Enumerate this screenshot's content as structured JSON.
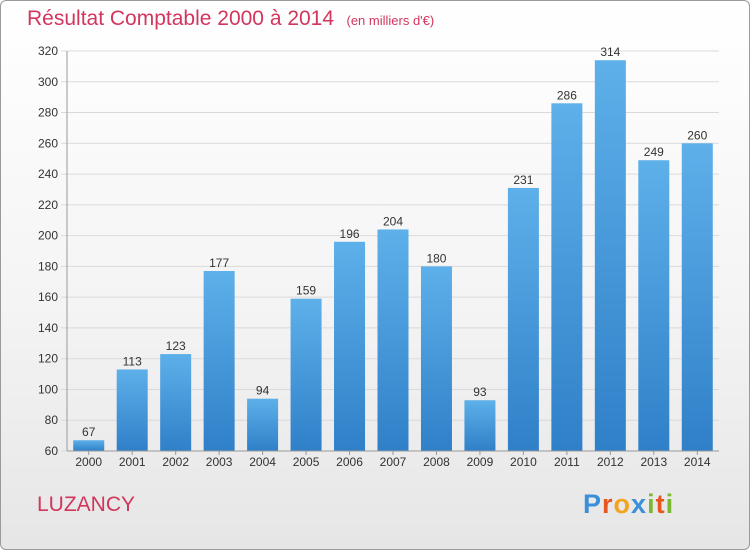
{
  "title": "Résultat Comptable 2000 à 2014",
  "subtitle": "(en milliers d'€)",
  "commune": "LUZANCY",
  "logo": {
    "text": "Proxiti",
    "letters": [
      {
        "ch": "P",
        "color": "#3b8fd8"
      },
      {
        "ch": "r",
        "color": "#e8561f"
      },
      {
        "ch": "o",
        "color": "#f2a41c"
      },
      {
        "ch": "x",
        "color": "#3b8fd8"
      },
      {
        "ch": "i",
        "color": "#7ab931"
      },
      {
        "ch": "t",
        "color": "#e8561f"
      },
      {
        "ch": "i",
        "color": "#7ab931"
      }
    ]
  },
  "colors": {
    "title": "#d2365d",
    "bar_top": "#5eb0ea",
    "bar_bottom": "#2f80c8",
    "grid": "#dadada",
    "axis_text": "#333333"
  },
  "chart_data": {
    "type": "bar",
    "categories": [
      "2000",
      "2001",
      "2002",
      "2003",
      "2004",
      "2005",
      "2006",
      "2007",
      "2008",
      "2009",
      "2010",
      "2011",
      "2012",
      "2013",
      "2014"
    ],
    "values": [
      67,
      113,
      123,
      177,
      94,
      159,
      196,
      204,
      180,
      93,
      231,
      286,
      314,
      249,
      260
    ],
    "ylim": [
      60,
      320
    ],
    "yticks": [
      60,
      80,
      100,
      120,
      140,
      160,
      180,
      200,
      220,
      240,
      260,
      280,
      300,
      320
    ],
    "grid": true
  }
}
